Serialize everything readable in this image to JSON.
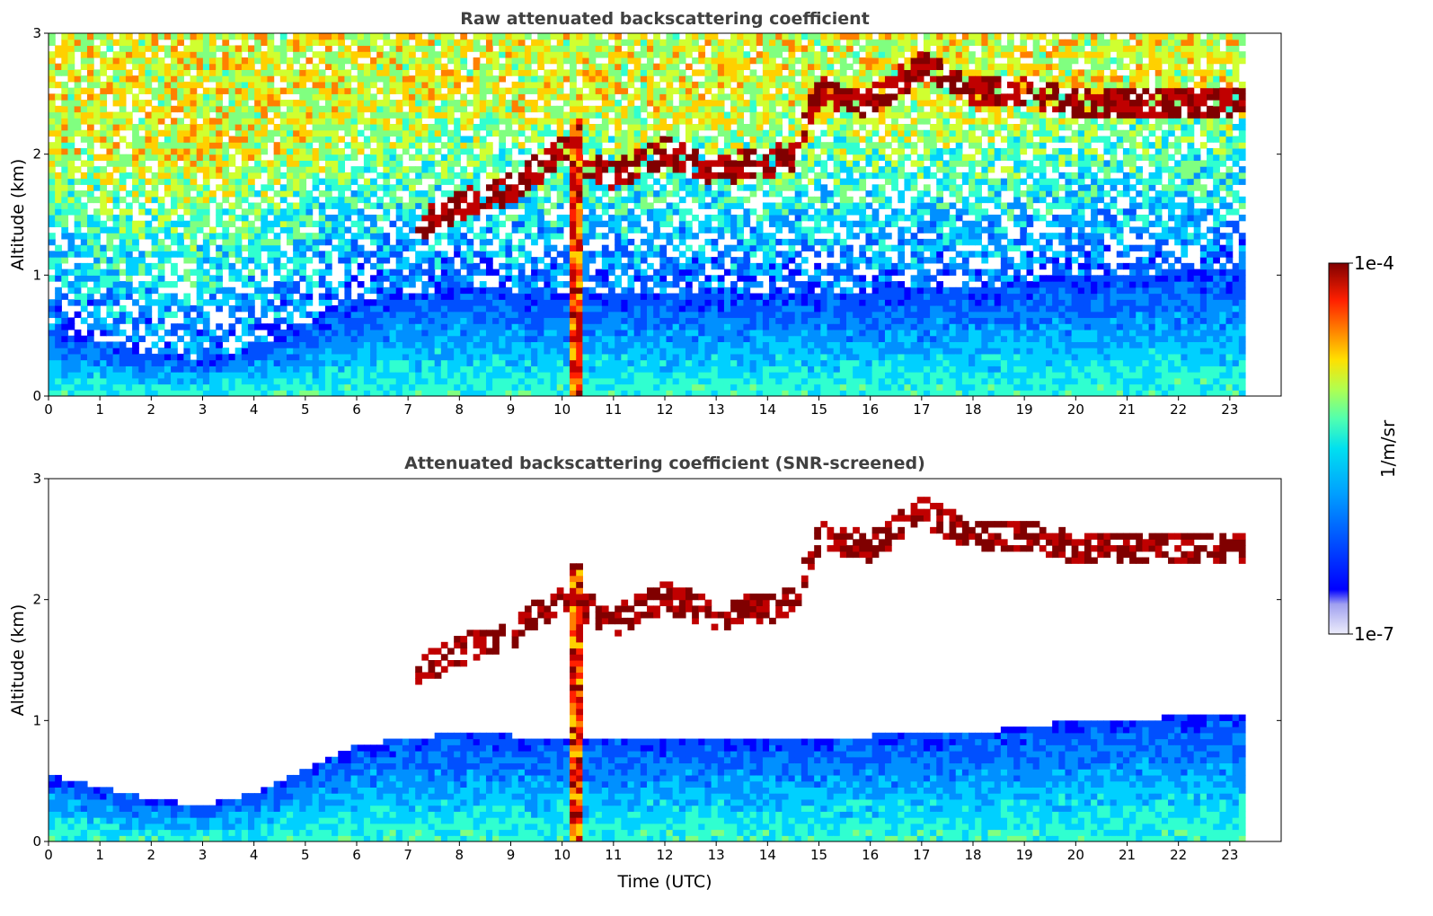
{
  "chart_data": [
    {
      "type": "heatmap",
      "title": "Raw attenuated backscattering coefficient",
      "xlabel": "",
      "ylabel": "Altitude (km)",
      "xlim": [
        0,
        24
      ],
      "ylim": [
        0,
        3
      ],
      "data_xrange": [
        0,
        23.3
      ],
      "x_ticks": [
        "0",
        "1",
        "2",
        "3",
        "4",
        "5",
        "6",
        "7",
        "8",
        "9",
        "10",
        "11",
        "12",
        "13",
        "14",
        "15",
        "16",
        "17",
        "18",
        "19",
        "20",
        "21",
        "22",
        "23"
      ],
      "y_ticks": [
        "0",
        "1",
        "2",
        "3"
      ],
      "grid": false,
      "screening": "none",
      "features": {
        "boundary_layer_top_km": [
          {
            "t": 0,
            "h": 0.55
          },
          {
            "t": 2,
            "h": 0.35
          },
          {
            "t": 3,
            "h": 0.3
          },
          {
            "t": 4,
            "h": 0.4
          },
          {
            "t": 5,
            "h": 0.6
          },
          {
            "t": 6,
            "h": 0.8
          },
          {
            "t": 8,
            "h": 0.9
          },
          {
            "t": 10,
            "h": 0.85
          },
          {
            "t": 14,
            "h": 0.85
          },
          {
            "t": 18,
            "h": 0.9
          },
          {
            "t": 20,
            "h": 1.0
          },
          {
            "t": 23.3,
            "h": 1.05
          }
        ],
        "cloud_base_km": [
          {
            "t": 7.2,
            "h": 1.3
          },
          {
            "t": 8,
            "h": 1.45
          },
          {
            "t": 9,
            "h": 1.6
          },
          {
            "t": 10,
            "h": 1.9
          },
          {
            "t": 11,
            "h": 1.7
          },
          {
            "t": 12,
            "h": 1.9
          },
          {
            "t": 13,
            "h": 1.75
          },
          {
            "t": 14.5,
            "h": 1.85
          },
          {
            "t": 15,
            "h": 2.4
          },
          {
            "t": 16,
            "h": 2.3
          },
          {
            "t": 17,
            "h": 2.6
          },
          {
            "t": 18,
            "h": 2.4
          },
          {
            "t": 19,
            "h": 2.4
          },
          {
            "t": 20,
            "h": 2.3
          },
          {
            "t": 21,
            "h": 2.3
          },
          {
            "t": 22,
            "h": 2.3
          },
          {
            "t": 23.3,
            "h": 2.3
          }
        ],
        "precipitation_shaft": {
          "t_start": 10.15,
          "t_end": 10.45,
          "top_km": 2.3
        }
      }
    },
    {
      "type": "heatmap",
      "title": "Attenuated backscattering coefficient (SNR-screened)",
      "xlabel": "Time (UTC)",
      "ylabel": "Altitude (km)",
      "xlim": [
        0,
        24
      ],
      "ylim": [
        0,
        3
      ],
      "data_xrange": [
        0,
        23.3
      ],
      "x_ticks": [
        "0",
        "1",
        "2",
        "3",
        "4",
        "5",
        "6",
        "7",
        "8",
        "9",
        "10",
        "11",
        "12",
        "13",
        "14",
        "15",
        "16",
        "17",
        "18",
        "19",
        "20",
        "21",
        "22",
        "23"
      ],
      "y_ticks": [
        "0",
        "1",
        "2",
        "3"
      ],
      "grid": false,
      "screening": "SNR"
    }
  ],
  "colorbar": {
    "label": "1/m/sr",
    "max_label": "1e-4",
    "min_label": "1e-7",
    "colormap": "jet",
    "colors": [
      "#ececfb",
      "#c8c8f5",
      "#a0a0f0",
      "#0000ff",
      "#0050ff",
      "#0090ff",
      "#00d0ff",
      "#30ffd0",
      "#80ff80",
      "#d0ff30",
      "#ffd000",
      "#ff8000",
      "#ff2000",
      "#c00000",
      "#800000"
    ]
  }
}
